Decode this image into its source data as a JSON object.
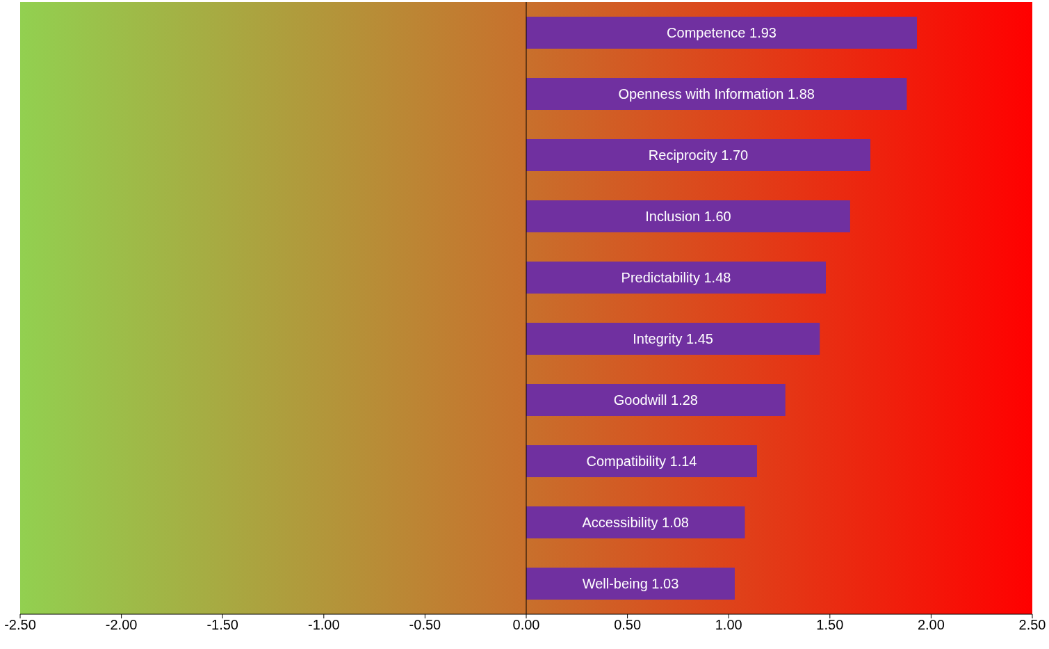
{
  "chart_data": {
    "type": "bar",
    "orientation": "horizontal",
    "categories": [
      "Competence",
      "Openness with Information",
      "Reciprocity",
      "Inclusion",
      "Predictability",
      "Integrity",
      "Goodwill",
      "Compatibility",
      "Accessibility",
      "Well-being"
    ],
    "values": [
      1.93,
      1.88,
      1.7,
      1.6,
      1.48,
      1.45,
      1.28,
      1.14,
      1.08,
      1.03
    ],
    "value_labels": [
      "1.93",
      "1.88",
      "1.70",
      "1.60",
      "1.48",
      "1.45",
      "1.28",
      "1.14",
      "1.08",
      "1.03"
    ],
    "color": "#7030a0",
    "xlim": [
      -2.5,
      2.5
    ],
    "xticks": [
      {
        "value": -2.5,
        "label": "-2.50"
      },
      {
        "value": -2,
        "label": "-2.00"
      },
      {
        "value": -1.5,
        "label": "-1.50"
      },
      {
        "value": -1,
        "label": "-1.00"
      },
      {
        "value": -0.5,
        "label": "-0.50"
      },
      {
        "value": 0,
        "label": "0.00"
      },
      {
        "value": 0.5,
        "label": "0.50"
      },
      {
        "value": 1,
        "label": "1.00"
      },
      {
        "value": 1.5,
        "label": "1.50"
      },
      {
        "value": 2,
        "label": "2.00"
      },
      {
        "value": 2.5,
        "label": "2.50"
      }
    ],
    "ref_lines": [
      {
        "axis": "x",
        "value": 0,
        "color": "#000000"
      }
    ],
    "tick_labels": "x"
  }
}
